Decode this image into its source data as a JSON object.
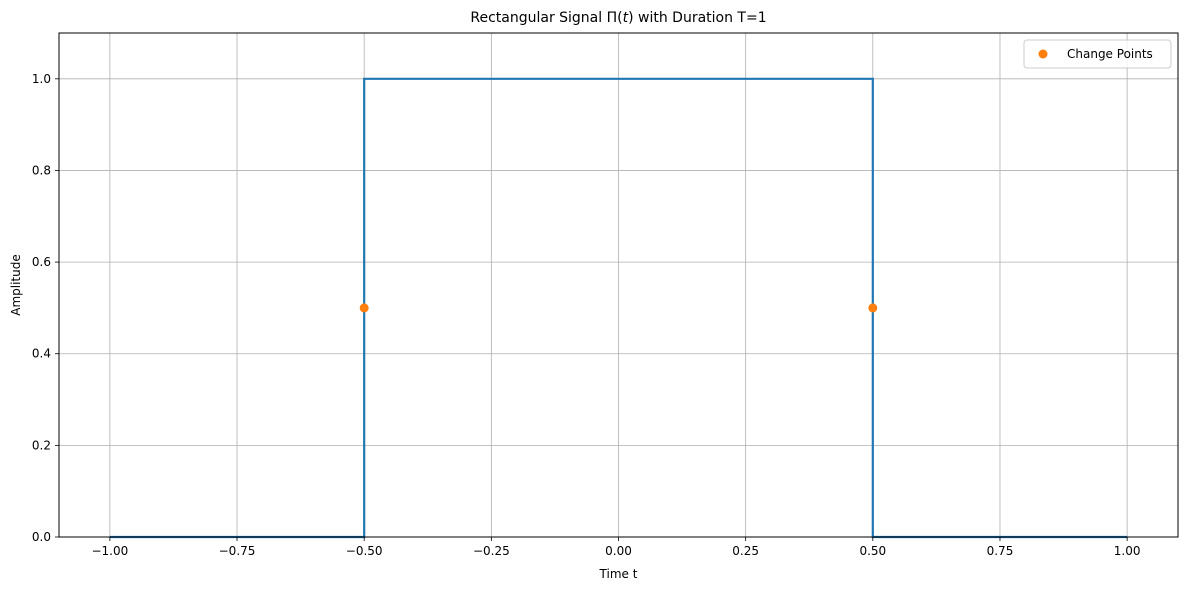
{
  "chart_data": {
    "type": "line",
    "title_prefix": "Rectangular Signal ",
    "title_symbol": "Π(",
    "title_var": "t",
    "title_suffix": ") with Duration T=1",
    "xlabel": "Time t",
    "ylabel": "Amplitude",
    "xlim": [
      -1.1,
      1.1
    ],
    "ylim": [
      0.0,
      1.1
    ],
    "xticks": [
      -1.0,
      -0.75,
      -0.5,
      -0.25,
      0.0,
      0.25,
      0.5,
      0.75,
      1.0
    ],
    "xtick_labels": [
      "−1.00",
      "−0.75",
      "−0.50",
      "−0.25",
      "0.00",
      "0.25",
      "0.50",
      "0.75",
      "1.00"
    ],
    "yticks": [
      0.0,
      0.2,
      0.4,
      0.6,
      0.8,
      1.0
    ],
    "ytick_labels": [
      "0.0",
      "0.2",
      "0.4",
      "0.6",
      "0.8",
      "1.0"
    ],
    "grid": true,
    "legend_position": "top-right",
    "series": [
      {
        "kind": "line",
        "color": "#1f77b4",
        "x": [
          -1.0,
          -0.5,
          -0.5,
          0.5,
          0.5,
          1.0
        ],
        "y": [
          0.0,
          0.0,
          1.0,
          1.0,
          0.0,
          0.0
        ]
      },
      {
        "kind": "points",
        "name": "Change Points",
        "color": "#ff7f0e",
        "x": [
          -0.5,
          0.5
        ],
        "y": [
          0.5,
          0.5
        ]
      }
    ]
  }
}
